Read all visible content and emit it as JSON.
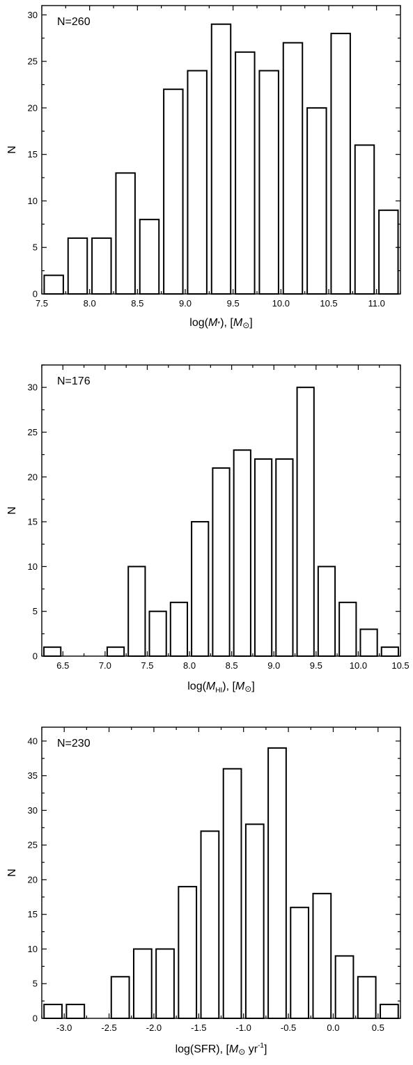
{
  "chart_data": [
    {
      "type": "bar",
      "annotation": "N=260",
      "ylabel": "N",
      "xlabel": {
        "pre": "log(",
        "sym": "M",
        "sub": "*",
        "post": "), [",
        "unit_sym": "M",
        "unit_sub": "⊙",
        "unit_post": "]"
      },
      "xlim": [
        7.5,
        11.25
      ],
      "ylim": [
        0,
        31
      ],
      "xticks": [
        7.5,
        8.0,
        8.5,
        9.0,
        9.5,
        10.0,
        10.5,
        11.0
      ],
      "xtick_labels": [
        "7.5",
        "8.0",
        "8.5",
        "9.0",
        "9.5",
        "10.0",
        "10.5",
        "11.0"
      ],
      "yticks": [
        0,
        5,
        10,
        15,
        20,
        25,
        30
      ],
      "ytick_labels": [
        "0",
        "5",
        "10",
        "15",
        "20",
        "25",
        "30"
      ],
      "bin_width": 0.25,
      "bar_width": 0.2,
      "x": [
        7.625,
        7.875,
        8.125,
        8.375,
        8.625,
        8.875,
        9.125,
        9.375,
        9.625,
        9.875,
        10.125,
        10.375,
        10.625,
        10.875,
        11.125
      ],
      "values": [
        2,
        6,
        6,
        13,
        8,
        22,
        24,
        29,
        26,
        24,
        27,
        20,
        28,
        16,
        9
      ]
    },
    {
      "type": "bar",
      "annotation": "N=176",
      "ylabel": "N",
      "xlabel": {
        "pre": "log(",
        "sym": "M",
        "sub": "HI",
        "post": "), [",
        "unit_sym": "M",
        "unit_sub": "⊙",
        "unit_post": "]"
      },
      "xlim": [
        6.25,
        10.5
      ],
      "ylim": [
        0,
        32.5
      ],
      "xticks": [
        6.5,
        7.0,
        7.5,
        8.0,
        8.5,
        9.0,
        9.5,
        10.0,
        10.5
      ],
      "xtick_labels": [
        "6.5",
        "7.0",
        "7.5",
        "8.0",
        "8.5",
        "9.0",
        "9.5",
        "10.0",
        "10.5"
      ],
      "yticks": [
        0,
        5,
        10,
        15,
        20,
        25,
        30
      ],
      "ytick_labels": [
        "0",
        "5",
        "10",
        "15",
        "20",
        "25",
        "30"
      ],
      "bin_width": 0.25,
      "bar_width": 0.2,
      "x": [
        6.375,
        6.625,
        6.875,
        7.125,
        7.375,
        7.625,
        7.875,
        8.125,
        8.375,
        8.625,
        8.875,
        9.125,
        9.375,
        9.625,
        9.875,
        10.125,
        10.375
      ],
      "values": [
        1,
        0,
        0,
        1,
        10,
        5,
        6,
        15,
        21,
        23,
        22,
        22,
        30,
        10,
        6,
        3,
        1
      ]
    },
    {
      "type": "bar",
      "annotation": "N=230",
      "ylabel": "N",
      "xlabel": {
        "pre": "log(SFR), [",
        "sym": "",
        "sub": "",
        "post": "",
        "unit_sym": "M",
        "unit_sub": "⊙",
        "unit_post": " yr",
        "unit_sup": "-1",
        "tail": "]"
      },
      "xlim": [
        -3.25,
        0.75
      ],
      "ylim": [
        0,
        42
      ],
      "xticks": [
        -3.0,
        -2.5,
        -2.0,
        -1.5,
        -1.0,
        -0.5,
        0.0,
        0.5
      ],
      "xtick_labels": [
        "-3.0",
        "-2.5",
        "-2.0",
        "-1.5",
        "-1.0",
        "-0.5",
        "0.0",
        "0.5"
      ],
      "yticks": [
        0,
        5,
        10,
        15,
        20,
        25,
        30,
        35,
        40
      ],
      "ytick_labels": [
        "0",
        "5",
        "10",
        "15",
        "20",
        "25",
        "30",
        "35",
        "40"
      ],
      "bin_width": 0.25,
      "bar_width": 0.2,
      "x": [
        -3.125,
        -2.875,
        -2.625,
        -2.375,
        -2.125,
        -1.875,
        -1.625,
        -1.375,
        -1.125,
        -0.875,
        -0.625,
        -0.375,
        -0.125,
        0.125,
        0.375,
        0.625
      ],
      "values": [
        2,
        2,
        0,
        6,
        10,
        10,
        19,
        27,
        36,
        28,
        39,
        16,
        18,
        9,
        6,
        2
      ]
    }
  ]
}
